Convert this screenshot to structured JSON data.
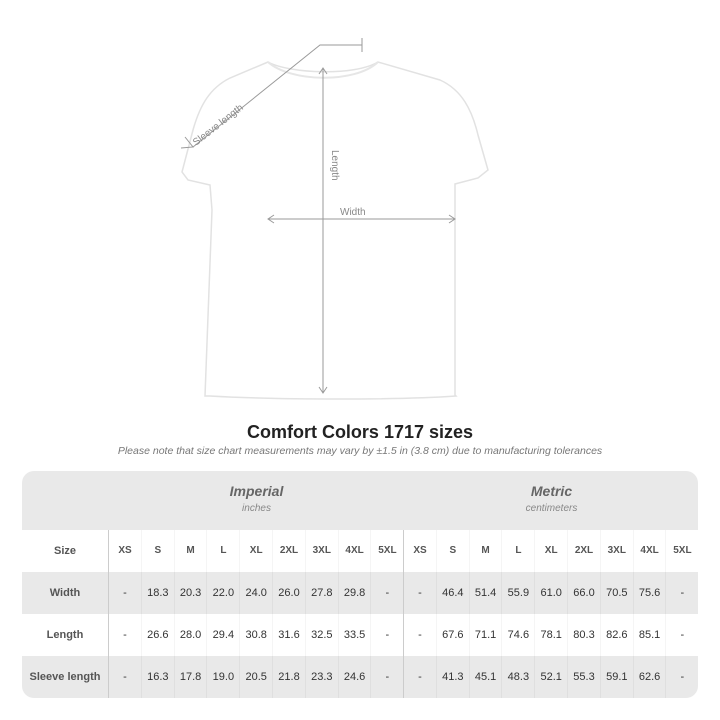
{
  "diagram": {
    "labels": {
      "sleeve": "Sleeve length",
      "length": "Length",
      "width": "Width"
    },
    "shirt_color": "#ffffff",
    "arrow_color": "#999999"
  },
  "title": "Comfort Colors 1717 sizes",
  "subtitle": "Please note that size chart measurements may vary by ±1.5 in (3.8 cm) due to manufacturing tolerances",
  "groups": [
    {
      "name": "Imperial",
      "unit": "inches"
    },
    {
      "name": "Metric",
      "unit": "centimeters"
    }
  ],
  "size_label": "Size",
  "sizes": [
    "XS",
    "S",
    "M",
    "L",
    "XL",
    "2XL",
    "3XL",
    "4XL",
    "5XL"
  ],
  "rows": [
    {
      "label": "Width",
      "imperial": [
        "-",
        "18.3",
        "20.3",
        "22.0",
        "24.0",
        "26.0",
        "27.8",
        "29.8",
        "-"
      ],
      "metric": [
        "-",
        "46.4",
        "51.4",
        "55.9",
        "61.0",
        "66.0",
        "70.5",
        "75.6",
        "-"
      ]
    },
    {
      "label": "Length",
      "imperial": [
        "-",
        "26.6",
        "28.0",
        "29.4",
        "30.8",
        "31.6",
        "32.5",
        "33.5",
        "-"
      ],
      "metric": [
        "-",
        "67.6",
        "71.1",
        "74.6",
        "78.1",
        "80.3",
        "82.6",
        "85.1",
        "-"
      ]
    },
    {
      "label": "Sleeve length",
      "imperial": [
        "-",
        "16.3",
        "17.8",
        "19.0",
        "20.5",
        "21.8",
        "23.3",
        "24.6",
        "-"
      ],
      "metric": [
        "-",
        "41.3",
        "45.1",
        "48.3",
        "52.1",
        "55.3",
        "59.1",
        "62.6",
        "-"
      ]
    }
  ]
}
